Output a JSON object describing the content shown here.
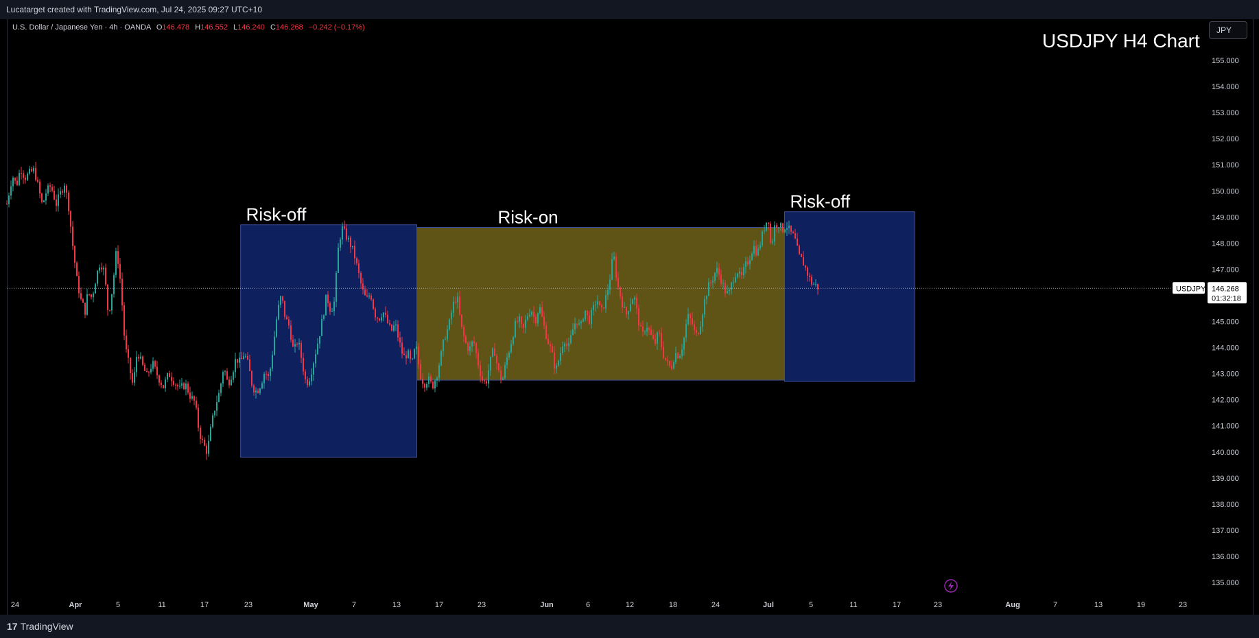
{
  "header": {
    "credit": "Lucatarget created with TradingView.com, Jul 24, 2025 09:27 UTC+10"
  },
  "legend": {
    "symbol": "U.S. Dollar / Japanese Yen · 4h · OANDA",
    "open_label": "O",
    "open": "146.478",
    "high_label": "H",
    "high": "146.552",
    "low_label": "L",
    "low": "146.240",
    "close_label": "C",
    "close": "146.268",
    "change": "−0.242 (−0.17%)"
  },
  "currency_button": "JPY",
  "footer": {
    "logo_text": "TradingView",
    "logo_mark": "17"
  },
  "colors": {
    "up": "#26a69a",
    "down": "#f23645",
    "risk_off_fill": "#0f2466",
    "risk_on_fill": "#675a18",
    "background": "#000000",
    "axis_text": "#d1d4dc"
  },
  "chart_data": {
    "type": "candlestick",
    "title": "USDJPY H4 Chart",
    "symbol": "USDJPY",
    "timeframe": "4h",
    "ylim": [
      134.5,
      155.7
    ],
    "y_ticks": [
      "155.000",
      "154.000",
      "153.000",
      "152.000",
      "151.000",
      "150.000",
      "149.000",
      "148.000",
      "147.000",
      "146.000",
      "145.000",
      "144.000",
      "143.000",
      "142.000",
      "141.000",
      "140.000",
      "139.000",
      "138.000",
      "137.000",
      "136.000",
      "135.000"
    ],
    "x_ticks": [
      "24",
      "Apr",
      "5",
      "11",
      "17",
      "23",
      "May",
      "7",
      "13",
      "17",
      "23",
      "Jun",
      "6",
      "12",
      "18",
      "24",
      "Jul",
      "5",
      "11",
      "17",
      "23",
      "Aug",
      "7",
      "13",
      "19",
      "23"
    ],
    "bold_x_ticks": [
      "Apr",
      "May",
      "Jun",
      "Jul",
      "Aug"
    ],
    "last_price": {
      "symbol": "USDJPY",
      "value": "146.268",
      "countdown": "01:32:18"
    },
    "zones": [
      {
        "label": "Risk-off",
        "type": "risk-off",
        "start": "Apr 21",
        "end": "May 14",
        "low": 139.8,
        "high": 148.7
      },
      {
        "label": "Risk-on",
        "type": "risk-on",
        "start": "May 14",
        "end": "Jul 1",
        "low": 142.75,
        "high": 148.6
      },
      {
        "label": "Risk-off",
        "type": "risk-off",
        "start": "Jul 1",
        "end": "Jul 18",
        "low": 142.7,
        "high": 149.2
      }
    ],
    "price_path": [
      [
        0,
        149.5
      ],
      [
        8,
        150.6
      ],
      [
        14,
        150.2
      ],
      [
        20,
        150.9
      ],
      [
        26,
        150.5
      ],
      [
        34,
        150.7
      ],
      [
        40,
        150.8
      ],
      [
        46,
        150.1
      ],
      [
        52,
        149.4
      ],
      [
        56,
        149.9
      ],
      [
        64,
        150.2
      ],
      [
        72,
        149.5
      ],
      [
        78,
        149.9
      ],
      [
        84,
        150.3
      ],
      [
        90,
        149.4
      ],
      [
        96,
        147.9
      ],
      [
        102,
        146.6
      ],
      [
        108,
        145.8
      ],
      [
        114,
        145.4
      ],
      [
        118,
        146.1
      ],
      [
        124,
        145.9
      ],
      [
        130,
        146.7
      ],
      [
        136,
        147.3
      ],
      [
        142,
        146.9
      ],
      [
        148,
        145.2
      ],
      [
        154,
        146.3
      ],
      [
        160,
        147.8
      ],
      [
        166,
        146.4
      ],
      [
        172,
        144.1
      ],
      [
        178,
        143.3
      ],
      [
        184,
        142.5
      ],
      [
        190,
        143.9
      ],
      [
        196,
        143.4
      ],
      [
        204,
        142.9
      ],
      [
        212,
        143.4
      ],
      [
        220,
        142.9
      ],
      [
        228,
        142.5
      ],
      [
        236,
        143.0
      ],
      [
        244,
        142.7
      ],
      [
        252,
        142.4
      ],
      [
        260,
        142.6
      ],
      [
        268,
        142.1
      ],
      [
        274,
        141.9
      ],
      [
        280,
        140.8
      ],
      [
        286,
        140.3
      ],
      [
        292,
        140.0
      ],
      [
        298,
        141.0
      ],
      [
        304,
        141.8
      ],
      [
        310,
        142.3
      ],
      [
        316,
        143.3
      ],
      [
        322,
        142.6
      ],
      [
        328,
        143.0
      ],
      [
        334,
        143.6
      ],
      [
        340,
        143.4
      ],
      [
        346,
        143.8
      ],
      [
        352,
        143.3
      ],
      [
        358,
        142.5
      ],
      [
        364,
        142.3
      ],
      [
        370,
        142.6
      ],
      [
        376,
        143.1
      ],
      [
        382,
        142.8
      ],
      [
        388,
        144.0
      ],
      [
        394,
        145.3
      ],
      [
        400,
        146.0
      ],
      [
        406,
        145.1
      ],
      [
        412,
        144.8
      ],
      [
        418,
        143.8
      ],
      [
        424,
        144.3
      ],
      [
        430,
        143.5
      ],
      [
        436,
        142.6
      ],
      [
        442,
        142.9
      ],
      [
        448,
        143.6
      ],
      [
        454,
        144.3
      ],
      [
        460,
        145.1
      ],
      [
        466,
        146.0
      ],
      [
        472,
        145.4
      ],
      [
        478,
        145.8
      ],
      [
        482,
        147.6
      ],
      [
        488,
        148.6
      ],
      [
        494,
        148.3
      ],
      [
        500,
        148.0
      ],
      [
        506,
        147.6
      ],
      [
        512,
        146.9
      ],
      [
        518,
        146.2
      ],
      [
        524,
        145.8
      ],
      [
        530,
        146.1
      ],
      [
        536,
        145.3
      ],
      [
        542,
        145.1
      ],
      [
        548,
        145.4
      ],
      [
        554,
        145.0
      ],
      [
        560,
        144.6
      ],
      [
        566,
        144.9
      ],
      [
        572,
        144.2
      ],
      [
        578,
        143.6
      ],
      [
        584,
        143.8
      ],
      [
        590,
        143.3
      ],
      [
        596,
        144.1
      ],
      [
        602,
        143.0
      ],
      [
        608,
        142.6
      ],
      [
        614,
        142.8
      ],
      [
        620,
        142.5
      ],
      [
        626,
        142.9
      ],
      [
        632,
        143.6
      ],
      [
        638,
        144.4
      ],
      [
        644,
        144.8
      ],
      [
        650,
        145.6
      ],
      [
        656,
        146.0
      ],
      [
        662,
        144.8
      ],
      [
        668,
        144.2
      ],
      [
        674,
        143.9
      ],
      [
        680,
        144.3
      ],
      [
        686,
        143.5
      ],
      [
        692,
        142.8
      ],
      [
        698,
        142.6
      ],
      [
        704,
        143.4
      ],
      [
        710,
        144.0
      ],
      [
        716,
        143.1
      ],
      [
        722,
        142.7
      ],
      [
        728,
        143.5
      ],
      [
        734,
        144.1
      ],
      [
        740,
        144.8
      ],
      [
        746,
        145.1
      ],
      [
        752,
        144.6
      ],
      [
        758,
        145.2
      ],
      [
        764,
        145.5
      ],
      [
        770,
        145.0
      ],
      [
        776,
        145.6
      ],
      [
        782,
        144.9
      ],
      [
        788,
        144.3
      ],
      [
        794,
        143.8
      ],
      [
        800,
        143.1
      ],
      [
        806,
        143.7
      ],
      [
        812,
        144.4
      ],
      [
        818,
        143.9
      ],
      [
        824,
        144.6
      ],
      [
        830,
        145.1
      ],
      [
        836,
        144.7
      ],
      [
        842,
        145.5
      ],
      [
        848,
        145.0
      ],
      [
        854,
        145.4
      ],
      [
        860,
        145.9
      ],
      [
        866,
        145.3
      ],
      [
        872,
        145.8
      ],
      [
        878,
        146.5
      ],
      [
        884,
        147.6
      ],
      [
        890,
        146.4
      ],
      [
        896,
        145.8
      ],
      [
        902,
        145.2
      ],
      [
        908,
        145.7
      ],
      [
        914,
        146.0
      ],
      [
        920,
        145.1
      ],
      [
        926,
        144.4
      ],
      [
        932,
        144.9
      ],
      [
        938,
        144.5
      ],
      [
        944,
        144.1
      ],
      [
        950,
        144.6
      ],
      [
        956,
        143.8
      ],
      [
        962,
        143.4
      ],
      [
        968,
        143.2
      ],
      [
        974,
        143.8
      ],
      [
        980,
        143.7
      ],
      [
        986,
        144.2
      ],
      [
        992,
        145.2
      ],
      [
        998,
        145.0
      ],
      [
        1004,
        144.4
      ],
      [
        1010,
        144.8
      ],
      [
        1016,
        145.7
      ],
      [
        1022,
        146.3
      ],
      [
        1028,
        146.6
      ],
      [
        1034,
        147.0
      ],
      [
        1040,
        146.7
      ],
      [
        1046,
        146.2
      ],
      [
        1052,
        146.0
      ],
      [
        1058,
        146.6
      ],
      [
        1064,
        147.0
      ],
      [
        1070,
        146.6
      ],
      [
        1076,
        147.1
      ],
      [
        1082,
        147.4
      ],
      [
        1088,
        147.9
      ],
      [
        1094,
        147.6
      ],
      [
        1100,
        148.2
      ],
      [
        1106,
        148.8
      ],
      [
        1110,
        148.9
      ],
      [
        1114,
        147.7
      ],
      [
        1118,
        148.6
      ],
      [
        1124,
        148.8
      ],
      [
        1130,
        148.5
      ],
      [
        1136,
        148.7
      ],
      [
        1142,
        148.4
      ],
      [
        1148,
        148.2
      ],
      [
        1154,
        147.5
      ],
      [
        1160,
        147.3
      ],
      [
        1166,
        146.9
      ],
      [
        1172,
        146.5
      ],
      [
        1178,
        146.4
      ],
      [
        1184,
        146.268
      ]
    ]
  }
}
